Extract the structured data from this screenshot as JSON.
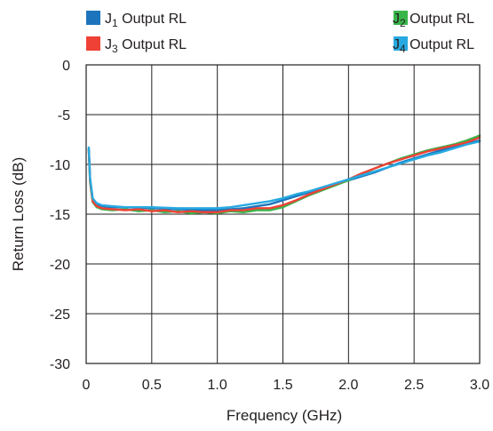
{
  "chart_data": {
    "type": "line",
    "title": "",
    "xlabel": "Frequency (GHz)",
    "ylabel": "Return Loss (dB)",
    "xlim": [
      0,
      3.0
    ],
    "ylim": [
      -30,
      0
    ],
    "xticks": [
      "0",
      "0.5",
      "1.0",
      "1.5",
      "2.0",
      "2.5",
      "3.0"
    ],
    "yticks": [
      "0",
      "-5",
      "-10",
      "-15",
      "-20",
      "-25",
      "-30"
    ],
    "grid": true,
    "legend_position": "top",
    "series": [
      {
        "name": "J1 Output RL",
        "label_base": "J",
        "label_sub": "1",
        "label_rest": " Output RL",
        "color": "#1c75bc",
        "points": [
          [
            0.02,
            -8.4
          ],
          [
            0.03,
            -11.5
          ],
          [
            0.05,
            -13.5
          ],
          [
            0.08,
            -14.0
          ],
          [
            0.12,
            -14.2
          ],
          [
            0.2,
            -14.3
          ],
          [
            0.3,
            -14.3
          ],
          [
            0.5,
            -14.4
          ],
          [
            0.7,
            -14.5
          ],
          [
            0.9,
            -14.6
          ],
          [
            1.0,
            -14.6
          ],
          [
            1.1,
            -14.5
          ],
          [
            1.2,
            -14.4
          ],
          [
            1.3,
            -14.2
          ],
          [
            1.4,
            -14.0
          ],
          [
            1.5,
            -13.6
          ],
          [
            1.6,
            -13.2
          ],
          [
            1.7,
            -12.8
          ],
          [
            1.8,
            -12.4
          ],
          [
            1.9,
            -12.0
          ],
          [
            2.0,
            -11.6
          ],
          [
            2.1,
            -11.2
          ],
          [
            2.2,
            -10.8
          ],
          [
            2.3,
            -10.3
          ],
          [
            2.4,
            -9.8
          ],
          [
            2.5,
            -9.4
          ],
          [
            2.6,
            -9.0
          ],
          [
            2.7,
            -8.6
          ],
          [
            2.8,
            -8.2
          ],
          [
            2.9,
            -7.9
          ],
          [
            3.0,
            -7.6
          ]
        ]
      },
      {
        "name": "J2 Output RL",
        "label_base": "J",
        "label_sub": "2",
        "label_rest": " Output RL",
        "color": "#39b54a",
        "points": [
          [
            0.02,
            -8.6
          ],
          [
            0.03,
            -11.8
          ],
          [
            0.05,
            -13.8
          ],
          [
            0.08,
            -14.3
          ],
          [
            0.12,
            -14.5
          ],
          [
            0.2,
            -14.6
          ],
          [
            0.3,
            -14.5
          ],
          [
            0.4,
            -14.7
          ],
          [
            0.5,
            -14.6
          ],
          [
            0.6,
            -14.8
          ],
          [
            0.7,
            -14.7
          ],
          [
            0.8,
            -14.9
          ],
          [
            0.9,
            -14.8
          ],
          [
            1.0,
            -14.9
          ],
          [
            1.1,
            -14.7
          ],
          [
            1.2,
            -14.8
          ],
          [
            1.3,
            -14.6
          ],
          [
            1.4,
            -14.6
          ],
          [
            1.5,
            -14.3
          ],
          [
            1.6,
            -13.7
          ],
          [
            1.7,
            -13.1
          ],
          [
            1.8,
            -12.6
          ],
          [
            1.9,
            -12.1
          ],
          [
            2.0,
            -11.6
          ],
          [
            2.1,
            -11.0
          ],
          [
            2.2,
            -10.4
          ],
          [
            2.3,
            -9.9
          ],
          [
            2.4,
            -9.4
          ],
          [
            2.5,
            -9.0
          ],
          [
            2.6,
            -8.6
          ],
          [
            2.7,
            -8.3
          ],
          [
            2.8,
            -8.0
          ],
          [
            2.9,
            -7.6
          ],
          [
            3.0,
            -7.1
          ]
        ]
      },
      {
        "name": "J3 Output RL",
        "label_base": "J",
        "label_sub": "3",
        "label_rest": " Output RL",
        "color": "#ef4136",
        "points": [
          [
            0.02,
            -8.5
          ],
          [
            0.03,
            -11.6
          ],
          [
            0.05,
            -13.7
          ],
          [
            0.08,
            -14.2
          ],
          [
            0.12,
            -14.4
          ],
          [
            0.2,
            -14.5
          ],
          [
            0.3,
            -14.6
          ],
          [
            0.4,
            -14.5
          ],
          [
            0.5,
            -14.7
          ],
          [
            0.6,
            -14.6
          ],
          [
            0.7,
            -14.8
          ],
          [
            0.8,
            -14.7
          ],
          [
            0.9,
            -14.8
          ],
          [
            1.0,
            -14.8
          ],
          [
            1.1,
            -14.6
          ],
          [
            1.2,
            -14.6
          ],
          [
            1.3,
            -14.4
          ],
          [
            1.4,
            -14.4
          ],
          [
            1.5,
            -14.1
          ],
          [
            1.6,
            -13.6
          ],
          [
            1.7,
            -13.0
          ],
          [
            1.8,
            -12.5
          ],
          [
            1.9,
            -12.0
          ],
          [
            2.0,
            -11.5
          ],
          [
            2.1,
            -10.9
          ],
          [
            2.2,
            -10.4
          ],
          [
            2.3,
            -9.9
          ],
          [
            2.4,
            -9.5
          ],
          [
            2.5,
            -9.1
          ],
          [
            2.6,
            -8.7
          ],
          [
            2.7,
            -8.4
          ],
          [
            2.8,
            -8.1
          ],
          [
            2.9,
            -7.8
          ],
          [
            3.0,
            -7.3
          ]
        ]
      },
      {
        "name": "J4 Output RL",
        "label_base": "J",
        "label_sub": "4",
        "label_rest": " Output RL",
        "color": "#27aae1",
        "points": [
          [
            0.02,
            -8.3
          ],
          [
            0.03,
            -11.4
          ],
          [
            0.05,
            -13.4
          ],
          [
            0.08,
            -13.9
          ],
          [
            0.12,
            -14.1
          ],
          [
            0.2,
            -14.2
          ],
          [
            0.3,
            -14.3
          ],
          [
            0.5,
            -14.3
          ],
          [
            0.7,
            -14.4
          ],
          [
            0.9,
            -14.4
          ],
          [
            1.0,
            -14.4
          ],
          [
            1.1,
            -14.3
          ],
          [
            1.2,
            -14.1
          ],
          [
            1.3,
            -13.9
          ],
          [
            1.4,
            -13.7
          ],
          [
            1.5,
            -13.4
          ],
          [
            1.6,
            -13.0
          ],
          [
            1.7,
            -12.7
          ],
          [
            1.8,
            -12.3
          ],
          [
            1.9,
            -11.9
          ],
          [
            2.0,
            -11.5
          ],
          [
            2.1,
            -11.1
          ],
          [
            2.2,
            -10.7
          ],
          [
            2.3,
            -10.3
          ],
          [
            2.4,
            -9.9
          ],
          [
            2.5,
            -9.5
          ],
          [
            2.6,
            -9.1
          ],
          [
            2.7,
            -8.8
          ],
          [
            2.8,
            -8.4
          ],
          [
            2.9,
            -8.0
          ],
          [
            3.0,
            -7.7
          ]
        ]
      }
    ]
  }
}
